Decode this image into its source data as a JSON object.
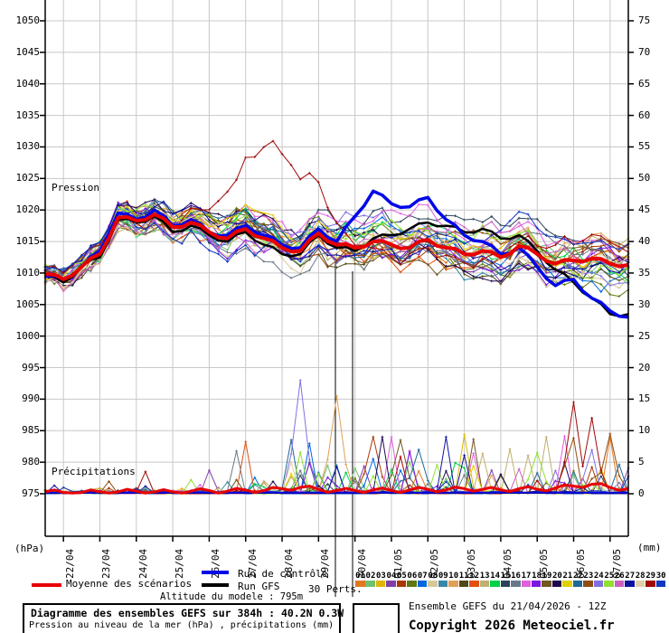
{
  "plot": {
    "pressure_section_label": "Pression",
    "precip_section_label": "Précipitations",
    "unit_left": "(hPa)",
    "unit_right": "(mm)"
  },
  "axes": {
    "left_ticks": [
      "1050",
      "1045",
      "1040",
      "1035",
      "1030",
      "1025",
      "1020",
      "1015",
      "1010",
      "1005",
      "1000",
      "995",
      "990",
      "985",
      "980",
      "975"
    ],
    "right_ticks": [
      "75",
      "70",
      "65",
      "60",
      "55",
      "50",
      "45",
      "40",
      "35",
      "30",
      "25",
      "20",
      "15",
      "10",
      "5",
      "0"
    ],
    "dates": [
      "22/04",
      "23/04",
      "24/04",
      "25/04",
      "26/04",
      "27/04",
      "28/04",
      "29/04",
      "30/04",
      "01/05",
      "02/05",
      "03/05",
      "04/05",
      "05/05",
      "06/05",
      "07/05"
    ]
  },
  "legend": {
    "mean_label": "Moyenne des scénarios",
    "control_label": "Run de contrôle",
    "gfs_label": "Run GFS",
    "perts_label": "30 Perts.",
    "altitude_label": "Altitude du modele : 795m",
    "mean_color": "#e80000",
    "control_color": "#0008e8",
    "gfs_color": "#000000"
  },
  "members_legend": {
    "numbers": [
      "01",
      "02",
      "03",
      "04",
      "05",
      "06",
      "07",
      "08",
      "09",
      "10",
      "11",
      "12",
      "13",
      "14",
      "15",
      "16",
      "17",
      "18",
      "19",
      "20",
      "21",
      "22",
      "23",
      "24",
      "25",
      "26",
      "27",
      "28",
      "29",
      "30"
    ],
    "colors": [
      "#e07820",
      "#70c070",
      "#dcb800",
      "#8040a8",
      "#a83800",
      "#607810",
      "#0068e0",
      "#d8c898",
      "#3888a8",
      "#e0a058",
      "#504818",
      "#e05010",
      "#c0b070",
      "#00d048",
      "#2c4458",
      "#687888",
      "#e060e0",
      "#7818e0",
      "#705820",
      "#200850",
      "#e0d000",
      "#206898",
      "#904c10",
      "#8070e0",
      "#90e030",
      "#cc60c0",
      "#1010a0",
      "#e0d0a8",
      "#a00808",
      "#1038c0"
    ]
  },
  "footer": {
    "title_line": "Diagramme des ensembles GEFS sur 384h : 40.2N 0.3W",
    "subtitle_line": "Pression au niveau de la mer (hPa) , précipitations (mm)",
    "run_info": "Ensemble GEFS du 21/04/2026 - 12Z",
    "copyright": "Copyright 2026 Meteociel.fr"
  },
  "chart_data": {
    "type": "line",
    "title": "Diagramme des ensembles GEFS sur 384h : 40.2N 0.3W",
    "run_start": "21/04/2026 12Z",
    "duration_hours": 384,
    "step_hours": 6,
    "n_steps": 65,
    "x_tick_dates": [
      "22/04",
      "23/04",
      "24/04",
      "25/04",
      "26/04",
      "27/04",
      "28/04",
      "29/04",
      "30/04",
      "01/05",
      "02/05",
      "03/05",
      "04/05",
      "05/05",
      "06/05",
      "07/05"
    ],
    "y_left_label": "Pression (hPa)",
    "y_left_range": [
      975,
      1050
    ],
    "y_right_label": "Précipitations (mm)",
    "y_right_range": [
      0,
      75
    ],
    "grid": true,
    "pressure_mean_12h": [
      1009.8,
      1009,
      1011,
      1013,
      1018.8,
      1018.3,
      1019.3,
      1017.3,
      1018,
      1016.5,
      1015.5,
      1017,
      1015.5,
      1014,
      1013.5,
      1016.3,
      1014.5,
      1014,
      1015,
      1014.5,
      1014,
      1015.3,
      1014,
      1013,
      1013.5,
      1012.5,
      1014.3,
      1013,
      1011.5,
      1012,
      1012.3,
      1011.5,
      1011.3
    ],
    "control_12h": [
      1009.5,
      1009,
      1011,
      1013.5,
      1019.5,
      1018.5,
      1020,
      1017.5,
      1018.5,
      1016.5,
      1016,
      1017.5,
      1016,
      1014.5,
      1014,
      1017,
      1015,
      1019,
      1023,
      1021,
      1020.5,
      1022,
      1018.5,
      1016,
      1015,
      1013,
      1014,
      1011,
      1008,
      1009,
      1006,
      1004,
      1003
    ],
    "gfs_12h": [
      1009.5,
      1008.5,
      1011,
      1012.5,
      1018.5,
      1018,
      1019,
      1016.5,
      1017.5,
      1016,
      1015,
      1016.5,
      1014.5,
      1013,
      1013,
      1016,
      1014,
      1013.5,
      1015.5,
      1016,
      1017,
      1018,
      1017.5,
      1016.5,
      1017,
      1015.5,
      1016,
      1013.5,
      1010.5,
      1008.5,
      1006,
      1003.5,
      1003.5
    ],
    "ensemble_spread_halfwidth_hpa": {
      "start": 1.3,
      "end": 9.6
    },
    "pressure_excursion": {
      "member": 29,
      "t_peak": 26,
      "sigma": 5.5,
      "amplitude": 12.5
    },
    "precip_mean_12h": [
      0.3,
      0.2,
      0.2,
      0.3,
      0.3,
      0.4,
      0.3,
      0.3,
      0.4,
      0.5,
      0.4,
      0.6,
      0.5,
      0.8,
      1.0,
      0.7,
      0.5,
      0.5,
      0.6,
      0.5,
      0.6,
      0.7,
      0.6,
      0.8,
      0.7,
      0.6,
      0.8,
      0.7,
      0.9,
      1.2,
      1.5,
      1.0,
      0.8
    ],
    "notable_precip_spikes": [
      {
        "member": 24,
        "t": 28,
        "mm": 18
      },
      {
        "member": 10,
        "t": 32,
        "mm": 15.5
      },
      {
        "member": 29,
        "t": 58,
        "mm": 14.5
      },
      {
        "member": 29,
        "t": 60,
        "mm": 12
      },
      {
        "member": 5,
        "t": 36,
        "mm": 9
      },
      {
        "member": 19,
        "t": 39,
        "mm": 8.5
      },
      {
        "member": 22,
        "t": 41,
        "mm": 7
      },
      {
        "member": 25,
        "t": 54,
        "mm": 6.5
      },
      {
        "member": 23,
        "t": 62,
        "mm": 9.5
      }
    ],
    "time_marker_lines_x": [
      371,
      390
    ],
    "members": [
      "01",
      "02",
      "03",
      "04",
      "05",
      "06",
      "07",
      "08",
      "09",
      "10",
      "11",
      "12",
      "13",
      "14",
      "15",
      "16",
      "17",
      "18",
      "19",
      "20",
      "21",
      "22",
      "23",
      "24",
      "25",
      "26",
      "27",
      "28",
      "29",
      "30"
    ]
  }
}
